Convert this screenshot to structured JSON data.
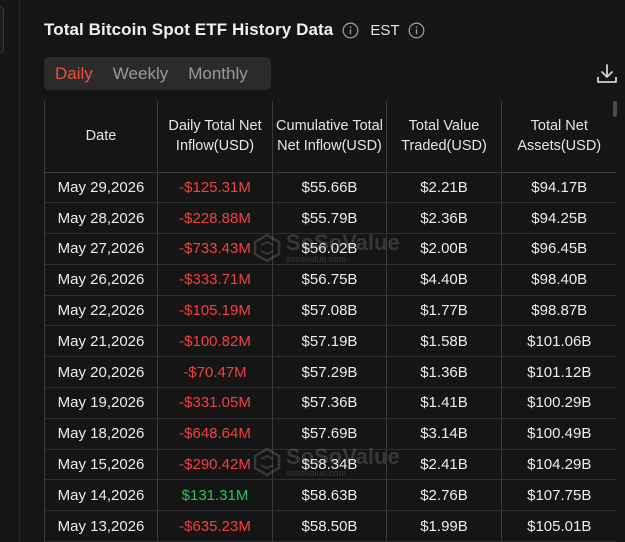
{
  "header": {
    "title": "Total Bitcoin Spot ETF History Data",
    "timezone": "EST"
  },
  "tabs": [
    {
      "label": "Daily",
      "active": true
    },
    {
      "label": "Weekly",
      "active": false
    },
    {
      "label": "Monthly",
      "active": false
    }
  ],
  "table": {
    "columns": [
      "Date",
      "Daily Total Net Inflow(USD)",
      "Cumulative Total Net Inflow(USD)",
      "Total Value Traded(USD)",
      "Total Net Assets(USD)"
    ],
    "rows": [
      {
        "date": "May 29,2026",
        "daily": "-$125.31M",
        "cumulative": "$55.66B",
        "traded": "$2.21B",
        "assets": "$94.17B"
      },
      {
        "date": "May 28,2026",
        "daily": "-$228.88M",
        "cumulative": "$55.79B",
        "traded": "$2.36B",
        "assets": "$94.25B"
      },
      {
        "date": "May 27,2026",
        "daily": "-$733.43M",
        "cumulative": "$56.02B",
        "traded": "$2.00B",
        "assets": "$96.45B"
      },
      {
        "date": "May 26,2026",
        "daily": "-$333.71M",
        "cumulative": "$56.75B",
        "traded": "$4.40B",
        "assets": "$98.40B"
      },
      {
        "date": "May 22,2026",
        "daily": "-$105.19M",
        "cumulative": "$57.08B",
        "traded": "$1.77B",
        "assets": "$98.87B"
      },
      {
        "date": "May 21,2026",
        "daily": "-$100.82M",
        "cumulative": "$57.19B",
        "traded": "$1.58B",
        "assets": "$101.06B"
      },
      {
        "date": "May 20,2026",
        "daily": "-$70.47M",
        "cumulative": "$57.29B",
        "traded": "$1.36B",
        "assets": "$101.12B"
      },
      {
        "date": "May 19,2026",
        "daily": "-$331.05M",
        "cumulative": "$57.36B",
        "traded": "$1.41B",
        "assets": "$100.29B"
      },
      {
        "date": "May 18,2026",
        "daily": "-$648.64M",
        "cumulative": "$57.69B",
        "traded": "$3.14B",
        "assets": "$100.49B"
      },
      {
        "date": "May 15,2026",
        "daily": "-$290.42M",
        "cumulative": "$58.34B",
        "traded": "$2.41B",
        "assets": "$104.29B"
      },
      {
        "date": "May 14,2026",
        "daily": "$131.31M",
        "cumulative": "$58.63B",
        "traded": "$2.76B",
        "assets": "$107.75B"
      },
      {
        "date": "May 13,2026",
        "daily": "-$635.23M",
        "cumulative": "$58.50B",
        "traded": "$1.99B",
        "assets": "$105.01B"
      }
    ]
  },
  "watermark": {
    "brand": "SoSoValue",
    "url": "sosovalue.com"
  },
  "colors": {
    "accent": "#e8533b",
    "negative": "#f0413f",
    "positive": "#2fc25b",
    "background": "#151515",
    "tab_bg": "#2b2b2b"
  },
  "icons": {
    "info": "info-circle-icon",
    "download": "download-icon",
    "watermark_logo": "sosovalue-logo-icon"
  }
}
